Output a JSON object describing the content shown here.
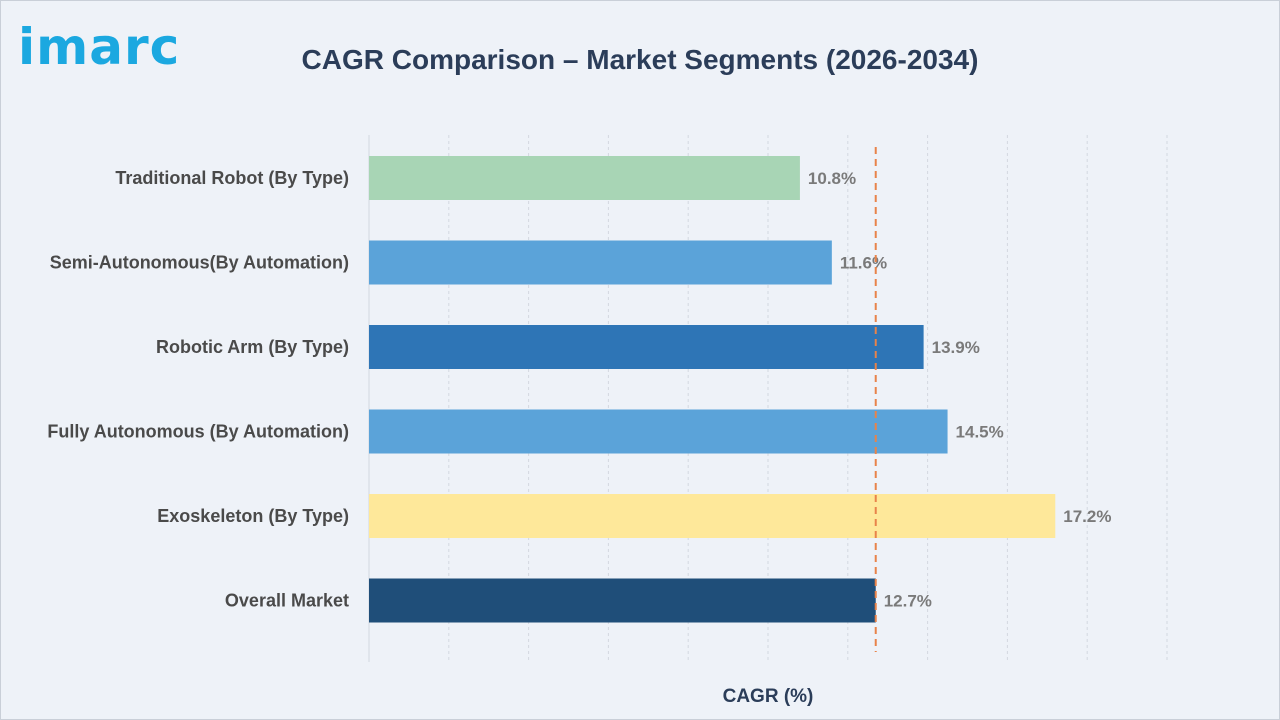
{
  "header": {
    "logo_text": "imarc",
    "title": "CAGR Comparison – Market Segments (2026-2034)"
  },
  "chart_data": {
    "type": "bar",
    "orientation": "horizontal",
    "title": "CAGR Comparison – Market Segments (2026-2034)",
    "xlabel": "CAGR (%)",
    "ylabel": "",
    "xlim": [
      0,
      20
    ],
    "grid": true,
    "categories": [
      "Traditional Robot (By Type)",
      "Semi-Autonomous(By Automation)",
      "Robotic Arm (By Type)",
      "Fully Autonomous (By Automation)",
      "Exoskeleton (By Type)",
      "Overall Market"
    ],
    "values": [
      10.8,
      11.6,
      13.9,
      14.5,
      17.2,
      12.7
    ],
    "data_labels": [
      "10.8%",
      "11.6%",
      "13.9%",
      "14.5%",
      "17.2%",
      "12.7%"
    ],
    "colors": [
      "#a8d5b5",
      "#5ba3d9",
      "#2e75b6",
      "#5ba3d9",
      "#fee89a",
      "#1f4e79"
    ],
    "reference_line": {
      "value": 12.7,
      "color": "#e8834a",
      "style": "dashed"
    }
  }
}
